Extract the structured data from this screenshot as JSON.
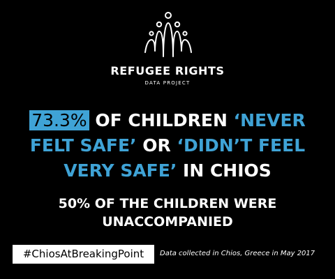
{
  "brand": {
    "logo_icon": "refugee-rights-figures-logo",
    "name": "REFUGEE RIGHTS",
    "subtitle": "DATA PROJECT"
  },
  "headline": {
    "percent": "73.3%",
    "part1_white": " OF CHILDREN ",
    "part1_blue": "‘NEVER",
    "line2_blue_a": "FELT SAFE’",
    "line2_white": " OR ",
    "line2_blue_b": "‘DIDN’T FEEL",
    "line3_blue": "VERY SAFE’",
    "line3_white": " IN CHIOS"
  },
  "subheadline": {
    "line1": "50% OF THE CHILDREN WERE",
    "line2": "UNACCOMPANIED"
  },
  "footer": {
    "hashtag": "#ChiosAtBreakingPoint",
    "note": "Data collected in Chios, Greece in May 2017"
  },
  "colors": {
    "background": "#000000",
    "accent": "#3fa3d6",
    "text": "#ffffff"
  }
}
